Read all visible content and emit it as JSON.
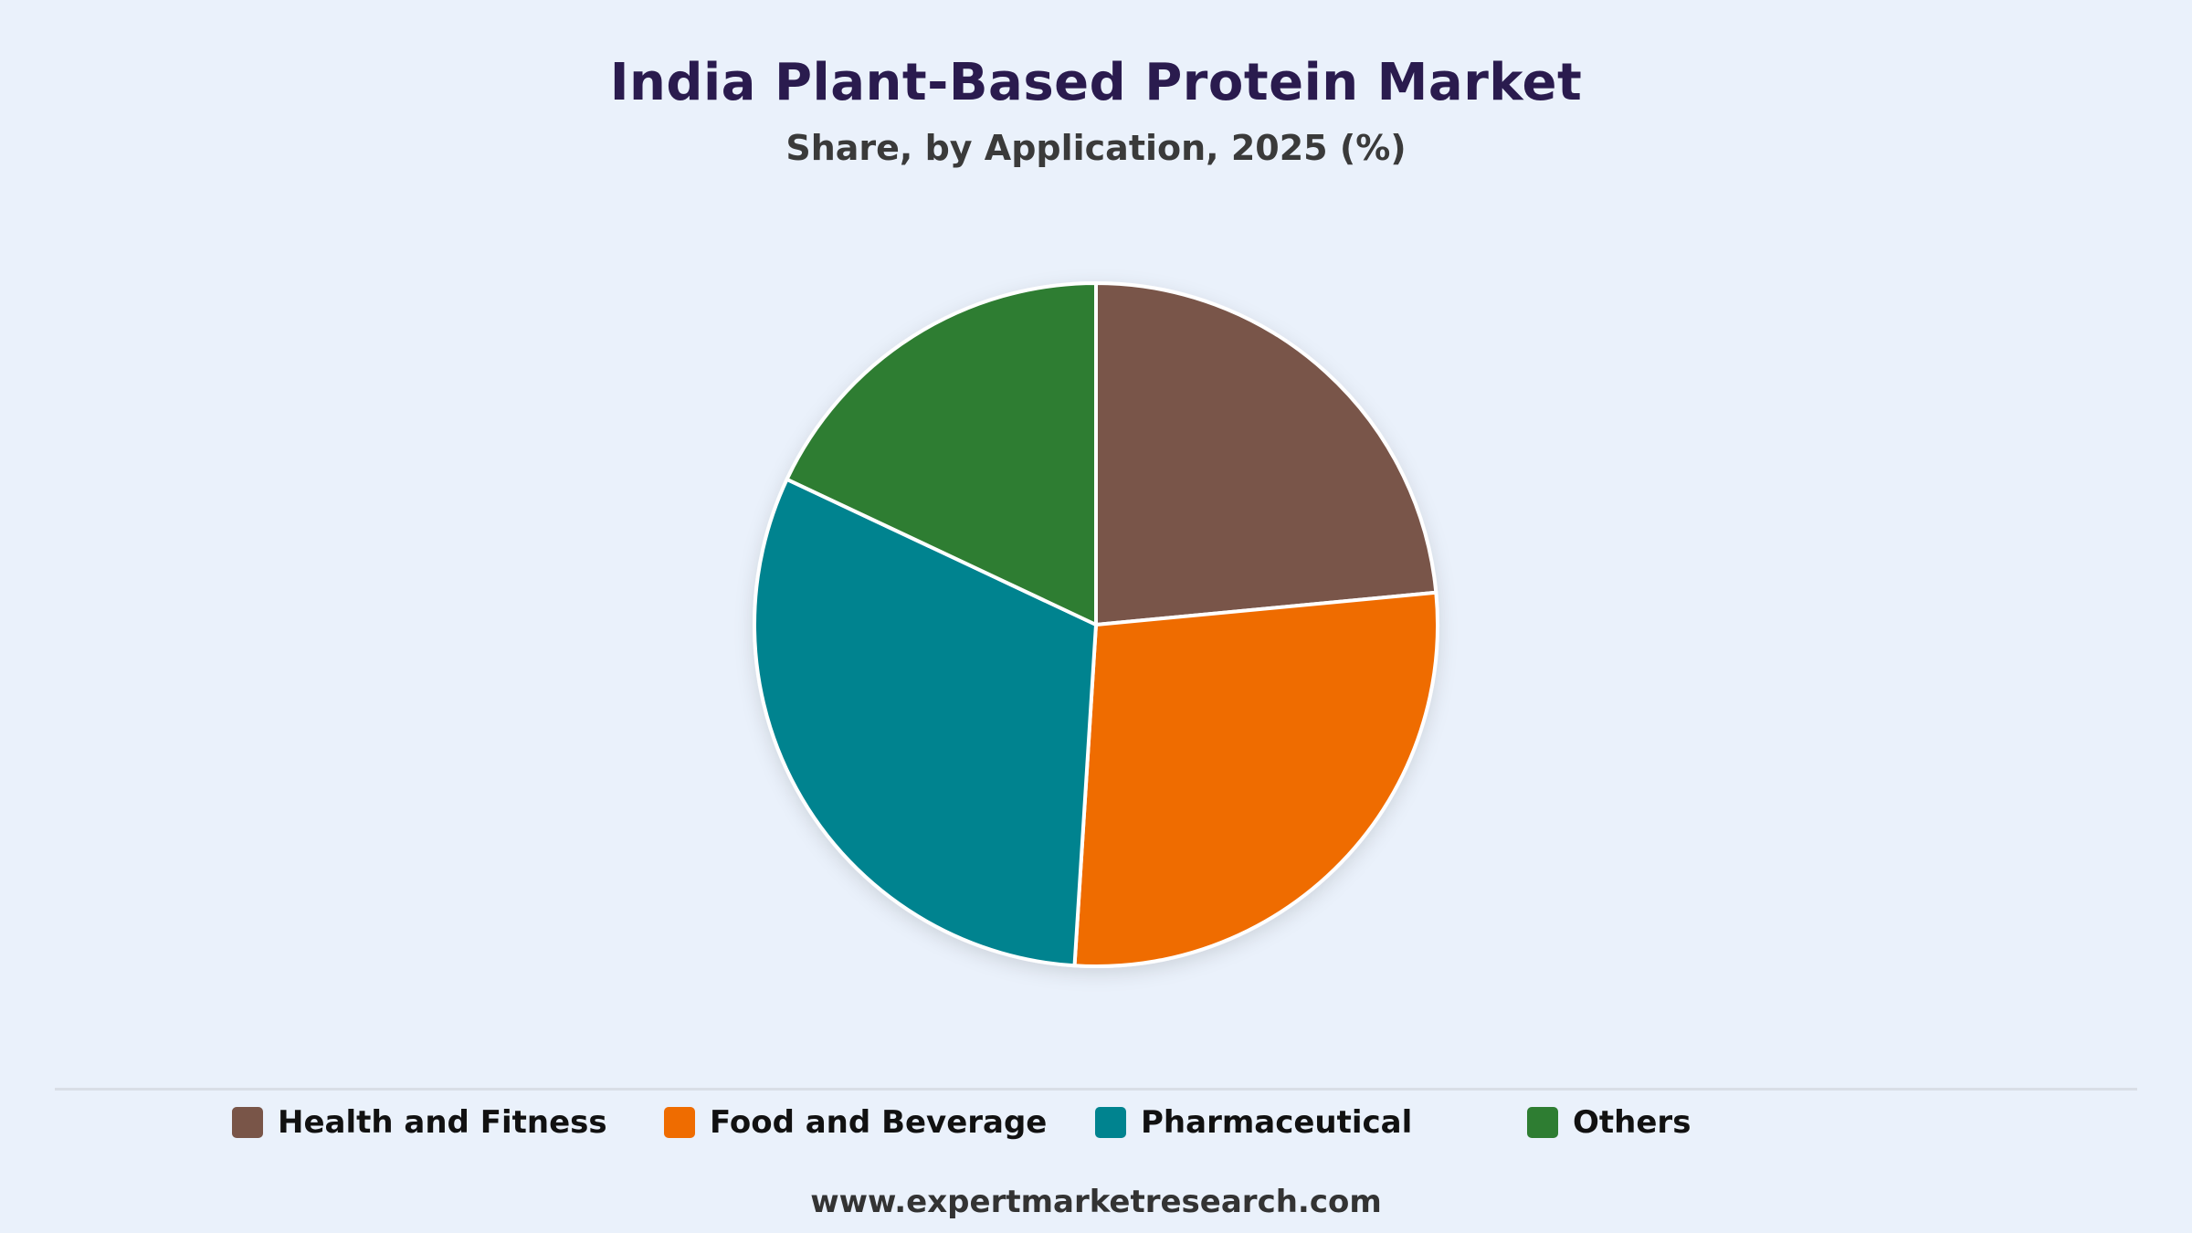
{
  "header": {
    "title": "India Plant-Based Protein Market",
    "subtitle": "Share, by Application, 2025 (%)"
  },
  "chart_data": {
    "type": "pie",
    "title": "India Plant-Based Protein Market",
    "subtitle": "Share, by Application, 2025 (%)",
    "categories": [
      "Health and Fitness",
      "Food and Beverage",
      "Pharmaceutical",
      "Others"
    ],
    "values": [
      23.5,
      27.5,
      31.0,
      18.0
    ],
    "colors": [
      "#795548",
      "#EF6C00",
      "#00838F",
      "#2E7D32"
    ],
    "start_angle": "12 o'clock",
    "direction": "clockwise",
    "legend": "bottom"
  },
  "legend": {
    "items": [
      {
        "label": "Health and Fitness",
        "color": "#795548"
      },
      {
        "label": "Food and Beverage",
        "color": "#EF6C00"
      },
      {
        "label": "Pharmaceutical",
        "color": "#00838F"
      },
      {
        "label": "Others",
        "color": "#2E7D32"
      }
    ]
  },
  "footer": {
    "source": "www.expertmarketresearch.com"
  }
}
